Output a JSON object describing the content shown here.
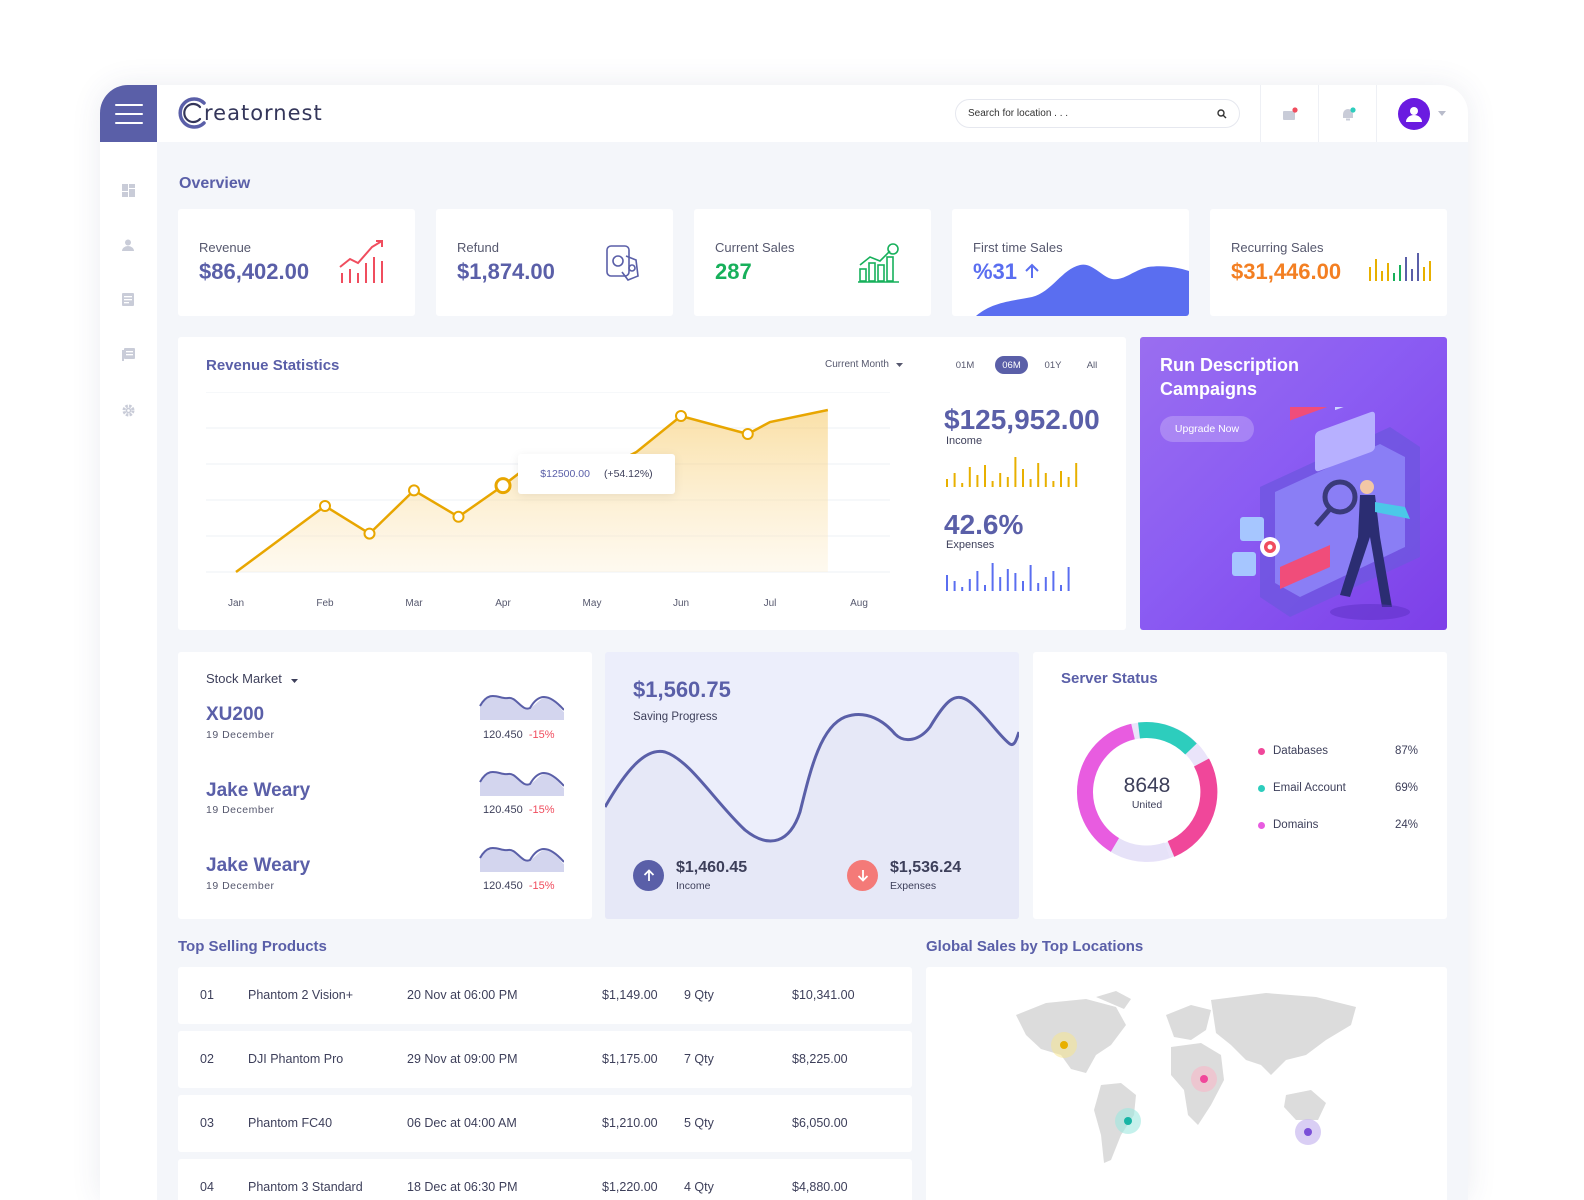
{
  "brand": {
    "name": "reatornest"
  },
  "search": {
    "placeholder": "Search for location . . ."
  },
  "overview": {
    "title": "Overview"
  },
  "kpis": [
    {
      "label": "Revenue",
      "value": "$86,402.00",
      "color": "#5a5fa8",
      "icon": "bar-chart-icon"
    },
    {
      "label": "Refund",
      "value": "$1,874.00",
      "color": "#5a5fa8",
      "icon": "money-bag-icon"
    },
    {
      "label": "Current Sales",
      "value": "287",
      "color": "#17b05b",
      "icon": "growth-dollar-icon"
    },
    {
      "label": "First time Sales",
      "value": "%31",
      "color": "#5a6ef0",
      "icon": "arrow-up-icon"
    },
    {
      "label": "Recurring Sales",
      "value": "$31,446.00",
      "color": "#f37f22",
      "icon": "colorful-bars-icon"
    }
  ],
  "revenue": {
    "title": "Revenue Statistics",
    "filter": "Current Month",
    "periods": [
      "01M",
      "06M",
      "01Y",
      "All"
    ],
    "active_period": "06M",
    "tooltip_value": "$12500.00",
    "tooltip_change": "(+54.12%)",
    "income_value": "$125,952.00",
    "income_label": "Income",
    "expenses_value": "42.6%",
    "expenses_label": "Expenses"
  },
  "chart_data": {
    "type": "area",
    "categories": [
      "Jan",
      "Feb",
      "Mar",
      "Apr",
      "May",
      "Jun",
      "Jul",
      "Aug"
    ],
    "x": [
      0,
      1,
      1.5,
      2,
      2.5,
      3,
      3.35,
      4,
      4.5,
      5,
      5.75,
      6,
      6.65
    ],
    "values": [
      0,
      55,
      32,
      68,
      46,
      72,
      92,
      81,
      100,
      130,
      115,
      125,
      135
    ],
    "ylim": [
      0,
      150
    ],
    "markers": [
      1,
      1.5,
      2,
      2.5,
      3,
      4,
      5,
      5.75
    ],
    "highlight": 3,
    "color": "#e8a600"
  },
  "promo": {
    "title": "Run Description Campaigns",
    "button": "Upgrade Now"
  },
  "stock": {
    "dropdown": "Stock Market",
    "items": [
      {
        "name": "XU200",
        "date": "19 December",
        "value": "120.450",
        "change": "-15%"
      },
      {
        "name": "Jake Weary",
        "date": "19 December",
        "value": "120.450",
        "change": "-15%"
      },
      {
        "name": "Jake Weary",
        "date": "19 December",
        "value": "120.450",
        "change": "-15%"
      }
    ]
  },
  "saving": {
    "amount": "$1,560.75",
    "label": "Saving Progress",
    "income_value": "$1,460.45",
    "income_label": "Income",
    "expenses_value": "$1,536.24",
    "expenses_label": "Expenses"
  },
  "server": {
    "title": "Server Status",
    "center_value": "8648",
    "center_label": "United",
    "items": [
      {
        "label": "Databases",
        "pct": "87%",
        "color": "#f0479a"
      },
      {
        "label": "Email Account",
        "pct": "69%",
        "color": "#2dcdbd"
      },
      {
        "label": "Domains",
        "pct": "24%",
        "color": "#e85ce0"
      }
    ]
  },
  "products": {
    "title": "Top Selling Products",
    "rows": [
      {
        "no": "01",
        "name": "Phantom 2 Vision+",
        "date": "20 Nov at 06:00 PM",
        "price": "$1,149.00",
        "qty": "9 Qty",
        "total": "$10,341.00"
      },
      {
        "no": "02",
        "name": "DJI Phantom Pro",
        "date": "29 Nov at 09:00 PM",
        "price": "$1,175.00",
        "qty": "7 Qty",
        "total": "$8,225.00"
      },
      {
        "no": "03",
        "name": "Phantom FC40",
        "date": "06 Dec at 04:00 AM",
        "price": "$1,210.00",
        "qty": "5 Qty",
        "total": "$6,050.00"
      },
      {
        "no": "04",
        "name": "Phantom 3 Standard",
        "date": "18 Dec at 06:30 PM",
        "price": "$1,220.00",
        "qty": "4 Qty",
        "total": "$4,880.00"
      }
    ]
  },
  "global": {
    "title": "Global Sales by Top Locations"
  }
}
